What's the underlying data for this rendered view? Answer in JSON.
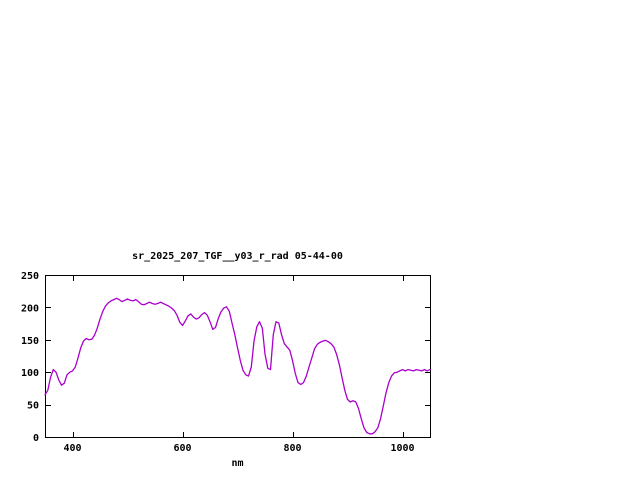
{
  "chart_data": {
    "type": "line",
    "title": "sr_2025_207_TGF__y03_r_rad 05-44-00",
    "xlabel": "nm",
    "ylabel": "",
    "xlim": [
      350,
      1050
    ],
    "ylim": [
      0,
      250
    ],
    "xticks": [
      400,
      600,
      800,
      1000
    ],
    "yticks": [
      0,
      50,
      100,
      150,
      200,
      250
    ],
    "grid": false,
    "legend": false,
    "line_color": "#aa00cc",
    "border_color": "#000000",
    "background": "#ffffff",
    "x_start": 350,
    "x_step": 5,
    "values": [
      65,
      72,
      92,
      104,
      100,
      88,
      80,
      83,
      96,
      100,
      102,
      108,
      122,
      138,
      148,
      152,
      150,
      151,
      157,
      168,
      182,
      194,
      202,
      207,
      210,
      212,
      214,
      212,
      209,
      211,
      213,
      211,
      210,
      212,
      209,
      205,
      204,
      206,
      208,
      206,
      205,
      206,
      208,
      206,
      204,
      202,
      199,
      195,
      188,
      177,
      172,
      179,
      187,
      190,
      185,
      182,
      184,
      189,
      192,
      188,
      178,
      166,
      169,
      183,
      193,
      199,
      201,
      194,
      176,
      158,
      138,
      118,
      103,
      96,
      94,
      108,
      148,
      170,
      178,
      168,
      128,
      106,
      104,
      158,
      178,
      176,
      158,
      144,
      139,
      134,
      118,
      98,
      84,
      81,
      84,
      94,
      108,
      122,
      136,
      143,
      146,
      148,
      149,
      147,
      144,
      139,
      128,
      112,
      92,
      72,
      58,
      54,
      56,
      54,
      44,
      28,
      14,
      7,
      5,
      5,
      8,
      14,
      28,
      48,
      68,
      84,
      94,
      99,
      100,
      102,
      104,
      102,
      104,
      103,
      102,
      104,
      103,
      102,
      104,
      102,
      104
    ]
  }
}
